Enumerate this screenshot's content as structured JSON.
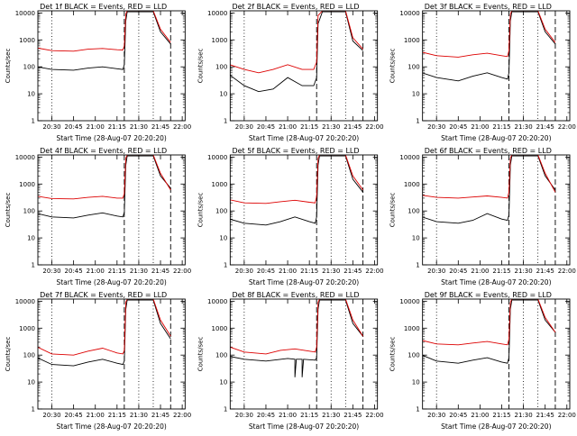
{
  "chart_data": [
    {
      "type": "line",
      "title": "Det 1f BLACK = Events, RED = LLD",
      "ylabel": "Counts/sec",
      "xlabel": "Start Time (28-Aug-07 20:20:20)",
      "yscale": "log",
      "ylim": [
        1,
        12000
      ],
      "xlim": [
        "20:20:20",
        "22:02"
      ],
      "x_ticks": [
        "20:30",
        "20:45",
        "21:00",
        "21:15",
        "21:30",
        "21:45",
        "22:00"
      ],
      "y_ticks": [
        "1",
        "10",
        "100",
        "1000",
        "10000"
      ],
      "vlines_dotted": [
        "20:30",
        "21:30",
        "21:40"
      ],
      "vlines_dashed": [
        "21:20",
        "21:52"
      ],
      "grid": false,
      "series": [
        {
          "color": "#000000",
          "x": [
            "20:20",
            "20:30",
            "20:45",
            "20:55",
            "21:05",
            "21:15",
            "21:19",
            "21:20",
            "21:21",
            "21:22",
            "21:40",
            "21:45",
            "21:52"
          ],
          "y": [
            100,
            80,
            75,
            90,
            100,
            85,
            80,
            120,
            5000,
            11000,
            11000,
            2000,
            700
          ]
        },
        {
          "color": "#dd0000",
          "x": [
            "20:20",
            "20:30",
            "20:45",
            "20:55",
            "21:05",
            "21:15",
            "21:19",
            "21:20",
            "21:21",
            "21:22",
            "21:40",
            "21:45",
            "21:52"
          ],
          "y": [
            500,
            400,
            380,
            450,
            480,
            430,
            420,
            600,
            9000,
            12000,
            12000,
            2500,
            800
          ]
        }
      ]
    },
    {
      "type": "line",
      "title": "Det 2f BLACK = Events, RED = LLD",
      "ylabel": "Counts/sec",
      "xlabel": "Start Time (28-Aug-07 20:20:20)",
      "yscale": "log",
      "ylim": [
        1,
        12000
      ],
      "xlim": [
        "20:20:20",
        "22:02"
      ],
      "x_ticks": [
        "20:30",
        "20:45",
        "21:00",
        "21:15",
        "21:30",
        "21:45",
        "22:00"
      ],
      "y_ticks": [
        "1",
        "10",
        "100",
        "1000",
        "10000"
      ],
      "vlines_dotted": [
        "20:30",
        "21:30",
        "21:40"
      ],
      "vlines_dashed": [
        "21:20",
        "21:52"
      ],
      "grid": false,
      "series": [
        {
          "color": "#000000",
          "x": [
            "20:20",
            "20:30",
            "20:40",
            "20:50",
            "21:00",
            "21:10",
            "21:18",
            "21:20",
            "21:21",
            "21:24",
            "21:40",
            "21:45",
            "21:52"
          ],
          "y": [
            50,
            20,
            12,
            15,
            40,
            20,
            20,
            40,
            4000,
            11000,
            11000,
            900,
            400
          ]
        },
        {
          "color": "#dd0000",
          "x": [
            "20:20",
            "20:30",
            "20:40",
            "20:50",
            "21:00",
            "21:10",
            "21:18",
            "21:20",
            "21:21",
            "21:24",
            "21:40",
            "21:45",
            "21:52"
          ],
          "y": [
            120,
            80,
            60,
            80,
            120,
            80,
            80,
            150,
            8000,
            12000,
            12000,
            1200,
            450
          ]
        }
      ]
    },
    {
      "type": "line",
      "title": "Det 3f BLACK = Events, RED = LLD",
      "ylabel": "Counts/sec",
      "xlabel": "Start Time (28-Aug-07 20:20:20)",
      "yscale": "log",
      "ylim": [
        1,
        12000
      ],
      "xlim": [
        "20:20:20",
        "22:02"
      ],
      "x_ticks": [
        "20:30",
        "20:45",
        "21:00",
        "21:15",
        "21:30",
        "21:45",
        "22:00"
      ],
      "y_ticks": [
        "1",
        "10",
        "100",
        "1000",
        "10000"
      ],
      "vlines_dotted": [
        "20:30",
        "21:30",
        "21:40"
      ],
      "vlines_dashed": [
        "21:20",
        "21:52"
      ],
      "grid": false,
      "series": [
        {
          "color": "#000000",
          "x": [
            "20:20",
            "20:30",
            "20:45",
            "20:55",
            "21:05",
            "21:15",
            "21:19",
            "21:20",
            "21:21",
            "21:22",
            "21:40",
            "21:45",
            "21:52"
          ],
          "y": [
            60,
            40,
            30,
            45,
            60,
            40,
            35,
            60,
            5000,
            11000,
            11000,
            2000,
            700
          ]
        },
        {
          "color": "#dd0000",
          "x": [
            "20:20",
            "20:30",
            "20:45",
            "20:55",
            "21:05",
            "21:15",
            "21:19",
            "21:20",
            "21:21",
            "21:22",
            "21:40",
            "21:45",
            "21:52"
          ],
          "y": [
            350,
            260,
            230,
            280,
            320,
            260,
            240,
            400,
            9000,
            12000,
            12000,
            2500,
            800
          ]
        }
      ]
    },
    {
      "type": "line",
      "title": "Det 4f BLACK = Events, RED = LLD",
      "ylabel": "Counts/sec",
      "xlabel": "Start Time (28-Aug-07 20:20:20)",
      "yscale": "log",
      "ylim": [
        1,
        12000
      ],
      "xlim": [
        "20:20:20",
        "22:02"
      ],
      "x_ticks": [
        "20:30",
        "20:45",
        "21:00",
        "21:15",
        "21:30",
        "21:45",
        "22:00"
      ],
      "y_ticks": [
        "1",
        "10",
        "100",
        "1000",
        "10000"
      ],
      "vlines_dotted": [
        "20:30",
        "21:30",
        "21:40"
      ],
      "vlines_dashed": [
        "21:20",
        "21:52"
      ],
      "grid": false,
      "series": [
        {
          "color": "#000000",
          "x": [
            "20:20",
            "20:30",
            "20:45",
            "20:55",
            "21:05",
            "21:15",
            "21:19",
            "21:20",
            "21:21",
            "21:22",
            "21:40",
            "21:45",
            "21:52"
          ],
          "y": [
            80,
            60,
            55,
            70,
            85,
            65,
            60,
            90,
            5000,
            11000,
            11000,
            2000,
            700
          ]
        },
        {
          "color": "#dd0000",
          "x": [
            "20:20",
            "20:30",
            "20:45",
            "20:55",
            "21:05",
            "21:15",
            "21:19",
            "21:20",
            "21:21",
            "21:22",
            "21:40",
            "21:45",
            "21:52"
          ],
          "y": [
            350,
            290,
            280,
            320,
            350,
            300,
            300,
            450,
            9000,
            12000,
            12000,
            2500,
            600
          ]
        }
      ]
    },
    {
      "type": "line",
      "title": "Det 5f BLACK = Events, RED = LLD",
      "ylabel": "Counts/sec",
      "xlabel": "Start Time (28-Aug-07 20:20:20)",
      "yscale": "log",
      "ylim": [
        1,
        12000
      ],
      "xlim": [
        "20:20:20",
        "22:02"
      ],
      "x_ticks": [
        "20:30",
        "20:45",
        "21:00",
        "21:15",
        "21:30",
        "21:45",
        "22:00"
      ],
      "y_ticks": [
        "1",
        "10",
        "100",
        "1000",
        "10000"
      ],
      "vlines_dotted": [
        "20:30",
        "21:30",
        "21:40"
      ],
      "vlines_dashed": [
        "21:20",
        "21:52"
      ],
      "grid": false,
      "series": [
        {
          "color": "#000000",
          "x": [
            "20:20",
            "20:30",
            "20:45",
            "20:55",
            "21:05",
            "21:15",
            "21:19",
            "21:20",
            "21:21",
            "21:22",
            "21:40",
            "21:45",
            "21:52"
          ],
          "y": [
            50,
            35,
            30,
            40,
            60,
            40,
            35,
            60,
            5000,
            11000,
            11000,
            1500,
            500
          ]
        },
        {
          "color": "#dd0000",
          "x": [
            "20:20",
            "20:30",
            "20:45",
            "20:55",
            "21:05",
            "21:15",
            "21:19",
            "21:20",
            "21:21",
            "21:22",
            "21:40",
            "21:45",
            "21:52"
          ],
          "y": [
            260,
            200,
            190,
            220,
            250,
            210,
            200,
            350,
            9000,
            12000,
            12000,
            2000,
            600
          ]
        }
      ]
    },
    {
      "type": "line",
      "title": "Det 6f BLACK = Events, RED = LLD",
      "ylabel": "Counts/sec",
      "xlabel": "Start Time (28-Aug-07 20:20:20)",
      "yscale": "log",
      "ylim": [
        1,
        12000
      ],
      "xlim": [
        "20:20:20",
        "22:02"
      ],
      "x_ticks": [
        "20:30",
        "20:45",
        "21:00",
        "21:15",
        "21:30",
        "21:45",
        "22:00"
      ],
      "y_ticks": [
        "1",
        "10",
        "100",
        "1000",
        "10000"
      ],
      "vlines_dotted": [
        "20:30",
        "21:30",
        "21:40"
      ],
      "vlines_dashed": [
        "21:20",
        "21:52"
      ],
      "grid": false,
      "series": [
        {
          "color": "#000000",
          "x": [
            "20:20",
            "20:30",
            "20:45",
            "20:55",
            "21:05",
            "21:15",
            "21:19",
            "21:20",
            "21:21",
            "21:22",
            "21:40",
            "21:45",
            "21:52"
          ],
          "y": [
            60,
            40,
            35,
            45,
            80,
            50,
            45,
            70,
            5000,
            11000,
            11000,
            2000,
            600
          ]
        },
        {
          "color": "#dd0000",
          "x": [
            "20:20",
            "20:30",
            "20:45",
            "20:55",
            "21:05",
            "21:15",
            "21:19",
            "21:20",
            "21:21",
            "21:22",
            "21:40",
            "21:45",
            "21:52"
          ],
          "y": [
            380,
            320,
            300,
            330,
            360,
            320,
            300,
            500,
            9000,
            12000,
            12000,
            2500,
            500
          ]
        }
      ]
    },
    {
      "type": "line",
      "title": "Det 7f BLACK = Events, RED = LLD",
      "ylabel": "Counts/sec",
      "xlabel": "Start Time (28-Aug-07 20:20:20)",
      "yscale": "log",
      "ylim": [
        1,
        12000
      ],
      "xlim": [
        "20:20:20",
        "22:02"
      ],
      "x_ticks": [
        "20:30",
        "20:45",
        "21:00",
        "21:15",
        "21:30",
        "21:45",
        "22:00"
      ],
      "y_ticks": [
        "1",
        "10",
        "100",
        "1000",
        "10000"
      ],
      "vlines_dotted": [
        "20:30",
        "21:30",
        "21:40"
      ],
      "vlines_dashed": [
        "21:20",
        "21:52"
      ],
      "grid": false,
      "series": [
        {
          "color": "#000000",
          "x": [
            "20:20",
            "20:30",
            "20:45",
            "20:55",
            "21:05",
            "21:15",
            "21:19",
            "21:20",
            "21:21",
            "21:22",
            "21:40",
            "21:45",
            "21:52"
          ],
          "y": [
            80,
            45,
            40,
            55,
            70,
            50,
            45,
            60,
            5000,
            11000,
            11000,
            1500,
            400
          ]
        },
        {
          "color": "#dd0000",
          "x": [
            "20:20",
            "20:30",
            "20:45",
            "20:55",
            "21:05",
            "21:15",
            "21:19",
            "21:20",
            "21:21",
            "21:22",
            "21:40",
            "21:45",
            "21:52"
          ],
          "y": [
            200,
            110,
            100,
            140,
            180,
            120,
            110,
            150,
            9000,
            12000,
            12000,
            2000,
            500
          ]
        }
      ]
    },
    {
      "type": "line",
      "title": "Det 8f BLACK = Events, RED = LLD",
      "ylabel": "Counts/sec",
      "xlabel": "Start Time (28-Aug-07 20:20:20)",
      "yscale": "log",
      "ylim": [
        1,
        12000
      ],
      "xlim": [
        "20:20:20",
        "22:02"
      ],
      "x_ticks": [
        "20:30",
        "20:45",
        "21:00",
        "21:15",
        "21:30",
        "21:45",
        "22:00"
      ],
      "y_ticks": [
        "1",
        "10",
        "100",
        "1000",
        "10000"
      ],
      "vlines_dotted": [
        "20:30",
        "21:30",
        "21:40"
      ],
      "vlines_dashed": [
        "21:20",
        "21:52"
      ],
      "grid": false,
      "series": [
        {
          "color": "#000000",
          "x": [
            "20:20",
            "20:30",
            "20:45",
            "21:00",
            "21:05",
            "21:05",
            "21:06",
            "21:10",
            "21:10",
            "21:11",
            "21:19",
            "21:20",
            "21:21",
            "21:22",
            "21:40",
            "21:45",
            "21:52"
          ],
          "y": [
            90,
            70,
            60,
            75,
            70,
            15,
            70,
            70,
            15,
            70,
            65,
            80,
            5000,
            11000,
            11000,
            1500,
            500
          ]
        },
        {
          "color": "#dd0000",
          "x": [
            "20:20",
            "20:30",
            "20:45",
            "20:55",
            "21:05",
            "21:15",
            "21:19",
            "21:20",
            "21:21",
            "21:22",
            "21:40",
            "21:45",
            "21:52"
          ],
          "y": [
            200,
            130,
            110,
            150,
            170,
            140,
            130,
            200,
            9000,
            12000,
            12000,
            2000,
            500
          ]
        }
      ]
    },
    {
      "type": "line",
      "title": "Det 9f BLACK = Events, RED = LLD",
      "ylabel": "Counts/sec",
      "xlabel": "Start Time (28-Aug-07 20:20:20)",
      "yscale": "log",
      "ylim": [
        1,
        12000
      ],
      "xlim": [
        "20:20:20",
        "22:02"
      ],
      "x_ticks": [
        "20:30",
        "20:45",
        "21:00",
        "21:15",
        "21:30",
        "21:45",
        "22:00"
      ],
      "y_ticks": [
        "1",
        "10",
        "100",
        "1000",
        "10000"
      ],
      "vlines_dotted": [
        "20:30",
        "21:30",
        "21:40"
      ],
      "vlines_dashed": [
        "21:20",
        "21:52"
      ],
      "grid": false,
      "series": [
        {
          "color": "#000000",
          "x": [
            "20:20",
            "20:30",
            "20:45",
            "20:55",
            "21:05",
            "21:15",
            "21:19",
            "21:20",
            "21:21",
            "21:22",
            "21:40",
            "21:45",
            "21:52"
          ],
          "y": [
            100,
            60,
            50,
            65,
            80,
            55,
            50,
            80,
            5000,
            11000,
            11000,
            2000,
            700
          ]
        },
        {
          "color": "#dd0000",
          "x": [
            "20:20",
            "20:30",
            "20:45",
            "20:55",
            "21:05",
            "21:15",
            "21:19",
            "21:20",
            "21:21",
            "21:22",
            "21:40",
            "21:45",
            "21:52"
          ],
          "y": [
            350,
            260,
            240,
            280,
            320,
            260,
            240,
            380,
            9000,
            12000,
            12000,
            2500,
            700
          ]
        }
      ]
    }
  ]
}
